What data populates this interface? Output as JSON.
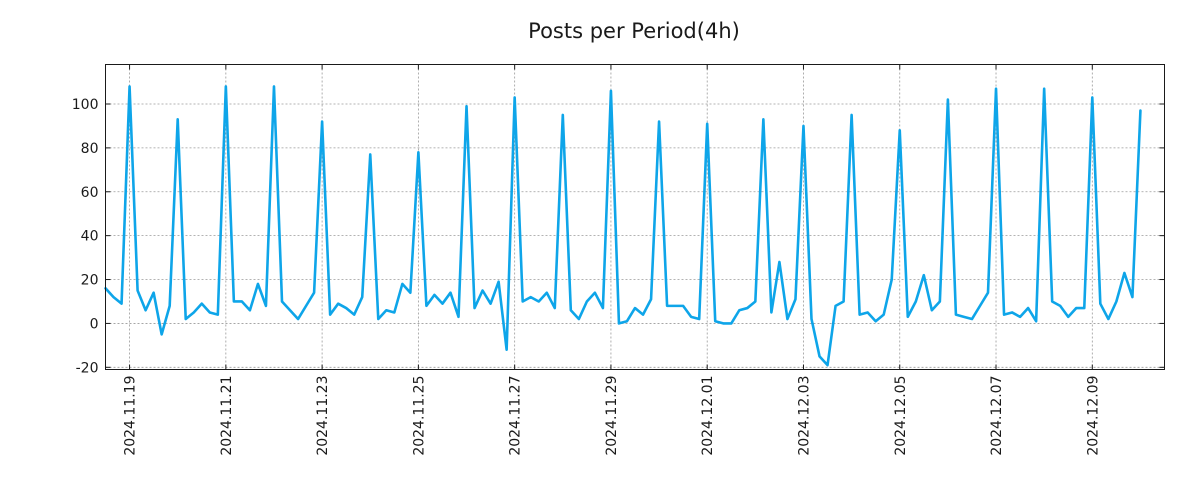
{
  "chart_data": {
    "type": "line",
    "title": "Posts per Period(4h)",
    "xlabel": "",
    "ylabel": "",
    "ylim": [
      -21,
      118
    ],
    "xlim": [
      0,
      132
    ],
    "yticks": [
      -20,
      0,
      20,
      40,
      60,
      80,
      100
    ],
    "xticks": [
      {
        "label": "2024.11.19",
        "x": 3
      },
      {
        "label": "2024.11.21",
        "x": 15
      },
      {
        "label": "2024.11.23",
        "x": 27
      },
      {
        "label": "2024.11.25",
        "x": 39
      },
      {
        "label": "2024.11.27",
        "x": 51
      },
      {
        "label": "2024.11.29",
        "x": 63
      },
      {
        "label": "2024.12.01",
        "x": 75
      },
      {
        "label": "2024.12.03",
        "x": 87
      },
      {
        "label": "2024.12.05",
        "x": 99
      },
      {
        "label": "2024.12.07",
        "x": 111
      },
      {
        "label": "2024.12.09",
        "x": 123
      }
    ],
    "grid": true,
    "series": [
      {
        "name": "posts",
        "color": "#0ea5e9",
        "values": [
          16,
          12,
          9,
          108,
          15,
          6,
          14,
          -5,
          8,
          93,
          2,
          5,
          9,
          5,
          4,
          108,
          10,
          10,
          6,
          18,
          8,
          108,
          10,
          6,
          2,
          8,
          14,
          92,
          4,
          9,
          7,
          4,
          12,
          77,
          2,
          6,
          5,
          18,
          14,
          78,
          8,
          13,
          9,
          14,
          3,
          99,
          7,
          15,
          9,
          19,
          -12,
          103,
          10,
          12,
          10,
          14,
          7,
          95,
          6,
          2,
          10,
          14,
          7,
          106,
          0,
          1,
          7,
          4,
          11,
          92,
          8,
          8,
          8,
          3,
          2,
          91,
          1,
          0,
          0,
          6,
          7,
          10,
          93,
          5,
          28,
          2,
          11,
          90,
          2,
          -15,
          -19,
          8,
          10,
          95,
          4,
          5,
          1,
          4,
          20,
          88,
          3,
          10,
          22,
          6,
          10,
          102,
          4,
          3,
          2,
          8,
          14,
          107,
          4,
          5,
          3,
          7,
          1,
          107,
          10,
          8,
          3,
          7,
          7,
          103,
          9,
          2,
          10,
          23,
          12,
          97
        ]
      }
    ]
  }
}
